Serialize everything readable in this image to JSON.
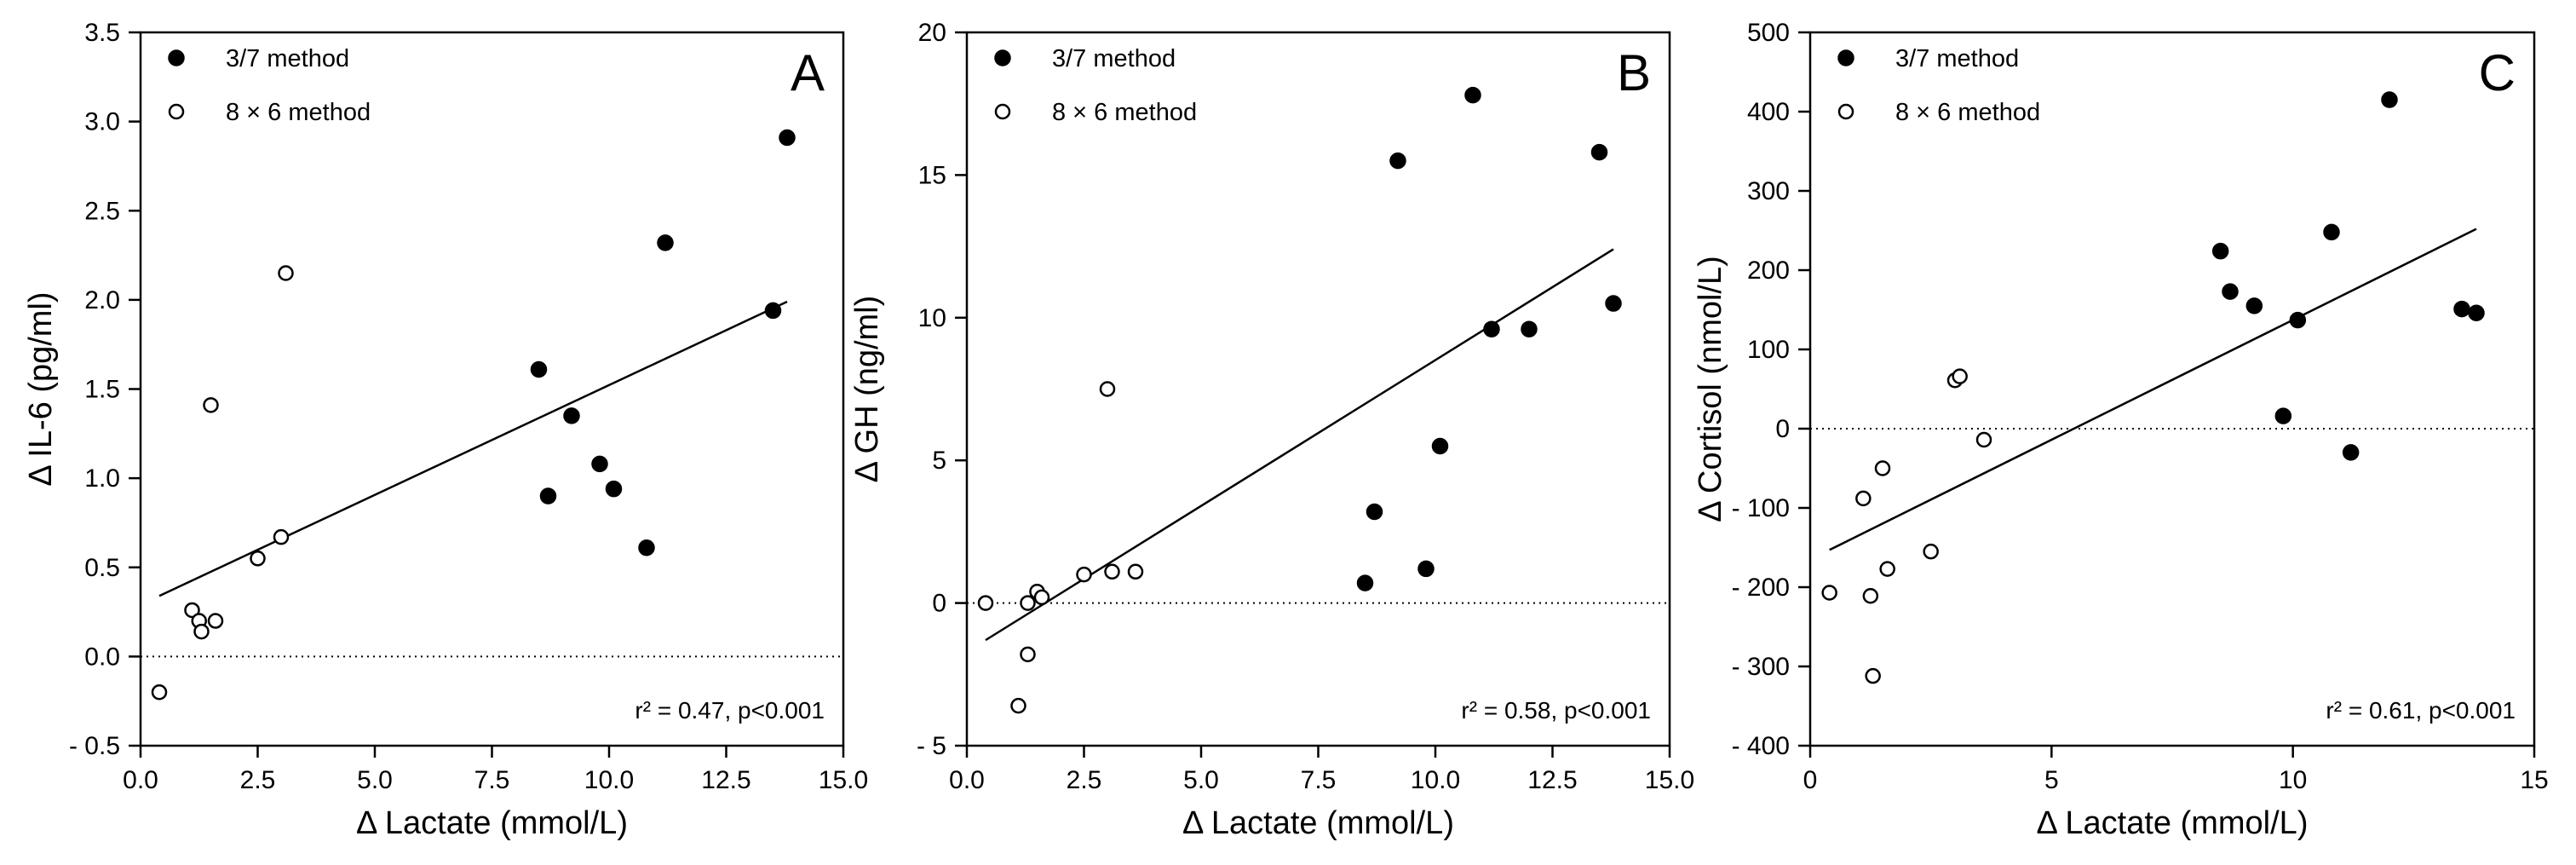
{
  "chart_data": [
    {
      "type": "scatter",
      "panel_letter": "A",
      "xlabel": "Δ Lactate (mmol/L)",
      "ylabel": "Δ IL-6 (pg/ml)",
      "xlim": [
        0,
        15
      ],
      "ylim": [
        -0.5,
        3.5
      ],
      "x_ticks": [
        "0.0",
        "2.5",
        "5.0",
        "7.5",
        "10.0",
        "12.5",
        "15.0"
      ],
      "x_tick_values": [
        0,
        2.5,
        5,
        7.5,
        10,
        12.5,
        15
      ],
      "y_ticks": [
        "- 0.5",
        "0.0",
        "0.5",
        "1.0",
        "1.5",
        "2.0",
        "2.5",
        "3.0",
        "3.5"
      ],
      "y_tick_values": [
        -0.5,
        0,
        0.5,
        1,
        1.5,
        2,
        2.5,
        3,
        3.5
      ],
      "zero_line": "dotted",
      "legend_position": "top-left",
      "series": [
        {
          "name": "3/7 method",
          "marker": "filled-circle",
          "points": [
            [
              8.5,
              1.61
            ],
            [
              8.7,
              0.9
            ],
            [
              9.2,
              1.35
            ],
            [
              9.8,
              1.08
            ],
            [
              10.1,
              0.94
            ],
            [
              10.8,
              0.61
            ],
            [
              11.2,
              2.32
            ],
            [
              13.5,
              1.94
            ],
            [
              13.8,
              2.91
            ]
          ]
        },
        {
          "name": "8 × 6 method",
          "marker": "open-circle",
          "points": [
            [
              0.4,
              -0.2
            ],
            [
              1.1,
              0.26
            ],
            [
              1.25,
              0.2
            ],
            [
              1.3,
              0.14
            ],
            [
              1.6,
              0.2
            ],
            [
              1.5,
              1.41
            ],
            [
              2.5,
              0.55
            ],
            [
              3.0,
              0.67
            ],
            [
              3.1,
              2.15
            ]
          ]
        }
      ],
      "fit_line": [
        [
          0.4,
          0.34
        ],
        [
          13.8,
          1.99
        ]
      ],
      "annotation": "r² = 0.47, p<0.001"
    },
    {
      "type": "scatter",
      "panel_letter": "B",
      "xlabel": "Δ Lactate (mmol/L)",
      "ylabel": "Δ GH (ng/ml)",
      "xlim": [
        0,
        15
      ],
      "ylim": [
        -5,
        20
      ],
      "x_ticks": [
        "0.0",
        "2.5",
        "5.0",
        "7.5",
        "10.0",
        "12.5",
        "15.0"
      ],
      "x_tick_values": [
        0,
        2.5,
        5,
        7.5,
        10,
        12.5,
        15
      ],
      "y_ticks": [
        "- 5",
        "0",
        "5",
        "10",
        "15",
        "20"
      ],
      "y_tick_values": [
        -5,
        0,
        5,
        10,
        15,
        20
      ],
      "zero_line": "dotted",
      "legend_position": "top-left",
      "series": [
        {
          "name": "3/7 method",
          "marker": "filled-circle",
          "points": [
            [
              8.5,
              0.7
            ],
            [
              8.7,
              3.2
            ],
            [
              9.2,
              15.5
            ],
            [
              9.8,
              1.2
            ],
            [
              10.1,
              5.5
            ],
            [
              10.8,
              17.8
            ],
            [
              11.2,
              9.6
            ],
            [
              12.0,
              9.6
            ],
            [
              13.5,
              15.8
            ],
            [
              13.8,
              10.5
            ]
          ]
        },
        {
          "name": "8 × 6 method",
          "marker": "open-circle",
          "points": [
            [
              0.4,
              0.0
            ],
            [
              1.1,
              -3.6
            ],
            [
              1.3,
              -1.8
            ],
            [
              1.3,
              0.0
            ],
            [
              1.5,
              0.4
            ],
            [
              1.6,
              0.2
            ],
            [
              2.5,
              1.0
            ],
            [
              3.0,
              7.5
            ],
            [
              3.1,
              1.1
            ],
            [
              3.6,
              1.1
            ]
          ]
        }
      ],
      "fit_line": [
        [
          0.4,
          -1.3
        ],
        [
          13.8,
          12.4
        ]
      ],
      "annotation": "r² = 0.58, p<0.001"
    },
    {
      "type": "scatter",
      "panel_letter": "C",
      "xlabel": "Δ Lactate (mmol/L)",
      "ylabel": "Δ Cortisol (nmol/L)",
      "xlim": [
        0,
        15
      ],
      "ylim": [
        -400,
        500
      ],
      "x_ticks": [
        "0",
        "5",
        "10",
        "15"
      ],
      "x_tick_values": [
        0,
        5,
        10,
        15
      ],
      "y_ticks": [
        "- 400",
        "- 300",
        "- 200",
        "- 100",
        "0",
        "100",
        "200",
        "300",
        "400",
        "500"
      ],
      "y_tick_values": [
        -400,
        -300,
        -200,
        -100,
        0,
        100,
        200,
        300,
        400,
        500
      ],
      "zero_line": "dotted",
      "legend_position": "top-left",
      "series": [
        {
          "name": "3/7 method",
          "marker": "filled-circle",
          "points": [
            [
              8.5,
              224
            ],
            [
              8.7,
              173
            ],
            [
              9.2,
              155
            ],
            [
              9.8,
              16
            ],
            [
              10.1,
              137
            ],
            [
              10.8,
              248
            ],
            [
              11.2,
              -30
            ],
            [
              12.0,
              415
            ],
            [
              13.5,
              151
            ],
            [
              13.8,
              146
            ]
          ]
        },
        {
          "name": "8 × 6 method",
          "marker": "open-circle",
          "points": [
            [
              0.4,
              -207
            ],
            [
              1.1,
              -88
            ],
            [
              1.25,
              -211
            ],
            [
              1.3,
              -312
            ],
            [
              1.5,
              -50
            ],
            [
              1.6,
              -177
            ],
            [
              2.5,
              -155
            ],
            [
              3.0,
              61
            ],
            [
              3.1,
              66
            ],
            [
              3.6,
              -14
            ]
          ]
        }
      ],
      "fit_line": [
        [
          0.4,
          -153
        ],
        [
          13.8,
          252
        ]
      ],
      "annotation": "r² = 0.61, p<0.001"
    }
  ]
}
